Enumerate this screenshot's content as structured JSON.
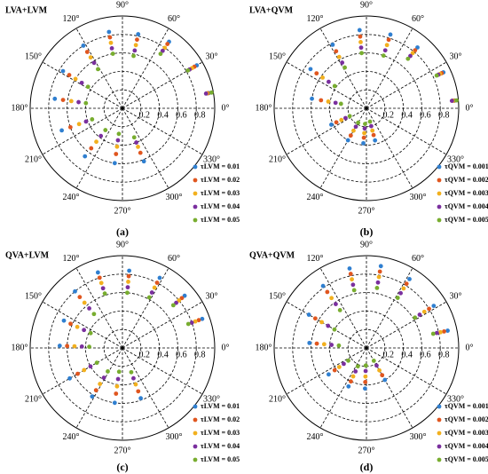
{
  "chart_data": [
    {
      "type": "scatter",
      "polar": true,
      "title": "LVA+LVM",
      "label": "(a)",
      "rlim": [
        0,
        1
      ],
      "rticks": [
        0.2,
        0.4,
        0.6,
        0.8
      ],
      "thetaticks": [
        {
          "value": 0,
          "label": "0°"
        },
        {
          "value": 30,
          "label": "30°"
        },
        {
          "value": 60,
          "label": "60°"
        },
        {
          "value": 90,
          "label": "90°"
        },
        {
          "value": 120,
          "label": "120°"
        },
        {
          "value": 150,
          "label": "150°"
        },
        {
          "value": 180,
          "label": "180°"
        },
        {
          "value": 210,
          "label": "210°"
        },
        {
          "value": 240,
          "label": "240°"
        },
        {
          "value": 270,
          "label": "270°"
        },
        {
          "value": 300,
          "label": "300°"
        },
        {
          "value": 330,
          "label": "330°"
        }
      ],
      "series": [
        {
          "name": "τLVM = 0.01",
          "color": "#2f7fd0",
          "theta": [
            10,
            30,
            55,
            78,
            100,
            122,
            148,
            172,
            200,
            232,
            262,
            292
          ],
          "r": [
            0.95,
            0.93,
            0.88,
            0.82,
            0.84,
            0.8,
            0.76,
            0.74,
            0.7,
            0.66,
            0.6,
            0.62
          ]
        },
        {
          "name": "τLVM = 0.02",
          "color": "#e0561f",
          "theta": [
            10,
            30,
            55,
            78,
            100,
            122,
            148,
            172,
            200,
            232,
            262,
            292
          ],
          "r": [
            0.94,
            0.9,
            0.85,
            0.76,
            0.78,
            0.72,
            0.68,
            0.65,
            0.6,
            0.55,
            0.5,
            0.52
          ]
        },
        {
          "name": "τLVM = 0.03",
          "color": "#f2b01e",
          "theta": [
            10,
            30,
            55,
            78,
            100,
            122,
            148,
            172,
            200,
            232,
            262,
            292
          ],
          "r": [
            0.93,
            0.87,
            0.8,
            0.7,
            0.72,
            0.65,
            0.6,
            0.56,
            0.5,
            0.46,
            0.42,
            0.45
          ]
        },
        {
          "name": "τLVM = 0.04",
          "color": "#7a2f9e",
          "theta": [
            10,
            30,
            55,
            78,
            100,
            122,
            148,
            172,
            200,
            232,
            262,
            292
          ],
          "r": [
            0.92,
            0.84,
            0.76,
            0.64,
            0.66,
            0.58,
            0.52,
            0.48,
            0.42,
            0.38,
            0.35,
            0.4
          ]
        },
        {
          "name": "τLVM = 0.05",
          "color": "#78ad2f",
          "theta": [
            10,
            30,
            55,
            78,
            100,
            122,
            148,
            172,
            200,
            232,
            262,
            292
          ],
          "r": [
            0.98,
            0.82,
            0.72,
            0.58,
            0.6,
            0.5,
            0.44,
            0.4,
            0.35,
            0.3,
            0.28,
            0.34
          ]
        }
      ]
    },
    {
      "type": "scatter",
      "polar": true,
      "title": "LVA+QVM",
      "label": "(b)",
      "rlim": [
        0,
        1
      ],
      "rticks": [
        0.2,
        0.4,
        0.6,
        0.8
      ],
      "thetaticks": [
        {
          "value": 0,
          "label": "0°"
        },
        {
          "value": 30,
          "label": "30°"
        },
        {
          "value": 60,
          "label": "60°"
        },
        {
          "value": 90,
          "label": "90°"
        },
        {
          "value": 120,
          "label": "120°"
        },
        {
          "value": 150,
          "label": "150°"
        },
        {
          "value": 180,
          "label": "180°"
        },
        {
          "value": 210,
          "label": "210°"
        },
        {
          "value": 240,
          "label": "240°"
        },
        {
          "value": 270,
          "label": "270°"
        },
        {
          "value": 300,
          "label": "300°"
        },
        {
          "value": 330,
          "label": "330°"
        }
      ],
      "series": [
        {
          "name": "τQVM = 0.001",
          "color": "#2f7fd0",
          "theta": [
            5,
            25,
            50,
            72,
            95,
            118,
            145,
            170,
            205,
            240,
            265,
            285
          ],
          "r": [
            0.96,
            0.92,
            0.86,
            0.84,
            0.85,
            0.78,
            0.74,
            0.6,
            0.42,
            0.4,
            0.38,
            0.36
          ]
        },
        {
          "name": "τQVM = 0.002",
          "color": "#e0561f",
          "theta": [
            5,
            25,
            50,
            72,
            95,
            118,
            145,
            170,
            205,
            240,
            265,
            285
          ],
          "r": [
            0.95,
            0.9,
            0.82,
            0.78,
            0.78,
            0.7,
            0.66,
            0.5,
            0.36,
            0.34,
            0.32,
            0.3
          ]
        },
        {
          "name": "τQVM = 0.003",
          "color": "#f2b01e",
          "theta": [
            5,
            25,
            50,
            72,
            95,
            118,
            145,
            170,
            205,
            240,
            265,
            285
          ],
          "r": [
            0.94,
            0.88,
            0.78,
            0.72,
            0.72,
            0.63,
            0.58,
            0.42,
            0.3,
            0.28,
            0.27,
            0.25
          ]
        },
        {
          "name": "τQVM = 0.004",
          "color": "#7a2f9e",
          "theta": [
            5,
            25,
            50,
            72,
            95,
            118,
            145,
            170,
            205,
            240,
            265,
            285
          ],
          "r": [
            0.93,
            0.86,
            0.74,
            0.66,
            0.66,
            0.56,
            0.5,
            0.34,
            0.25,
            0.23,
            0.22,
            0.2
          ]
        },
        {
          "name": "τQVM = 0.005",
          "color": "#78ad2f",
          "theta": [
            5,
            25,
            50,
            72,
            95,
            118,
            145,
            170,
            205,
            240,
            265,
            285
          ],
          "r": [
            0.98,
            0.84,
            0.7,
            0.6,
            0.6,
            0.5,
            0.42,
            0.28,
            0.2,
            0.18,
            0.17,
            0.15
          ]
        }
      ]
    },
    {
      "type": "scatter",
      "polar": true,
      "title": "QVA+LVM",
      "label": "(c)",
      "rlim": [
        0,
        1
      ],
      "rticks": [
        0.2,
        0.4,
        0.6,
        0.8
      ],
      "thetaticks": [
        {
          "value": 0,
          "label": "0°"
        },
        {
          "value": 30,
          "label": "30°"
        },
        {
          "value": 60,
          "label": "60°"
        },
        {
          "value": 90,
          "label": "90°"
        },
        {
          "value": 120,
          "label": "120°"
        },
        {
          "value": 150,
          "label": "150°"
        },
        {
          "value": 180,
          "label": "180°"
        },
        {
          "value": 210,
          "label": "210°"
        },
        {
          "value": 240,
          "label": "240°"
        },
        {
          "value": 270,
          "label": "270°"
        },
        {
          "value": 300,
          "label": "300°"
        },
        {
          "value": 330,
          "label": "330°"
        }
      ],
      "series": [
        {
          "name": "τLVM = 0.01",
          "color": "#2f7fd0",
          "theta": [
            20,
            40,
            62,
            85,
            108,
            130,
            155,
            178,
            210,
            238,
            262,
            290
          ],
          "r": [
            0.92,
            0.88,
            0.86,
            0.84,
            0.86,
            0.8,
            0.7,
            0.68,
            0.66,
            0.62,
            0.6,
            0.58
          ]
        },
        {
          "name": "τLVM = 0.02",
          "color": "#e0561f",
          "theta": [
            20,
            40,
            62,
            85,
            108,
            130,
            155,
            178,
            210,
            238,
            262,
            290
          ],
          "r": [
            0.88,
            0.84,
            0.8,
            0.78,
            0.8,
            0.72,
            0.62,
            0.6,
            0.56,
            0.54,
            0.5,
            0.5
          ]
        },
        {
          "name": "τLVM = 0.03",
          "color": "#f2b01e",
          "theta": [
            20,
            40,
            62,
            85,
            108,
            130,
            155,
            178,
            210,
            238,
            262,
            290
          ],
          "r": [
            0.84,
            0.8,
            0.74,
            0.72,
            0.74,
            0.64,
            0.54,
            0.52,
            0.48,
            0.46,
            0.42,
            0.42
          ]
        },
        {
          "name": "τLVM = 0.04",
          "color": "#7a2f9e",
          "theta": [
            20,
            40,
            62,
            85,
            108,
            130,
            155,
            178,
            210,
            238,
            262,
            290
          ],
          "r": [
            0.8,
            0.76,
            0.68,
            0.66,
            0.68,
            0.56,
            0.46,
            0.44,
            0.4,
            0.38,
            0.34,
            0.35
          ]
        },
        {
          "name": "τLVM = 0.05",
          "color": "#78ad2f",
          "theta": [
            20,
            40,
            62,
            85,
            108,
            130,
            155,
            178,
            210,
            238,
            262,
            290
          ],
          "r": [
            0.76,
            0.72,
            0.62,
            0.6,
            0.62,
            0.48,
            0.38,
            0.36,
            0.32,
            0.3,
            0.26,
            0.28
          ]
        }
      ]
    },
    {
      "type": "scatter",
      "polar": true,
      "title": "QVA+QVM",
      "label": "(d)",
      "rlim": [
        0,
        1
      ],
      "rticks": [
        0.2,
        0.4,
        0.6,
        0.8
      ],
      "thetaticks": [
        {
          "value": 0,
          "label": "0°"
        },
        {
          "value": 30,
          "label": "30°"
        },
        {
          "value": 60,
          "label": "60°"
        },
        {
          "value": 90,
          "label": "90°"
        },
        {
          "value": 120,
          "label": "120°"
        },
        {
          "value": 150,
          "label": "150°"
        },
        {
          "value": 180,
          "label": "180°"
        },
        {
          "value": 210,
          "label": "210°"
        },
        {
          "value": 240,
          "label": "240°"
        },
        {
          "value": 270,
          "label": "270°"
        },
        {
          "value": 300,
          "label": "300°"
        },
        {
          "value": 330,
          "label": "330°"
        }
      ],
      "series": [
        {
          "name": "τQVM = 0.001",
          "color": "#2f7fd0",
          "theta": [
            12,
            32,
            58,
            80,
            102,
            125,
            150,
            175,
            215,
            245,
            268,
            300
          ],
          "r": [
            0.9,
            0.86,
            0.88,
            0.9,
            0.88,
            0.82,
            0.72,
            0.62,
            0.5,
            0.46,
            0.44,
            0.4
          ]
        },
        {
          "name": "τQVM = 0.002",
          "color": "#e0561f",
          "theta": [
            12,
            32,
            58,
            80,
            102,
            125,
            150,
            175,
            215,
            245,
            268,
            300
          ],
          "r": [
            0.86,
            0.8,
            0.82,
            0.84,
            0.82,
            0.74,
            0.64,
            0.54,
            0.42,
            0.4,
            0.37,
            0.34
          ]
        },
        {
          "name": "τQVM = 0.003",
          "color": "#f2b01e",
          "theta": [
            12,
            32,
            58,
            80,
            102,
            125,
            150,
            175,
            215,
            245,
            268,
            300
          ],
          "r": [
            0.82,
            0.74,
            0.76,
            0.78,
            0.76,
            0.66,
            0.56,
            0.46,
            0.36,
            0.34,
            0.31,
            0.28
          ]
        },
        {
          "name": "τQVM = 0.004",
          "color": "#7a2f9e",
          "theta": [
            12,
            32,
            58,
            80,
            102,
            125,
            150,
            175,
            215,
            245,
            268,
            300
          ],
          "r": [
            0.78,
            0.68,
            0.7,
            0.72,
            0.7,
            0.58,
            0.48,
            0.38,
            0.3,
            0.28,
            0.25,
            0.22
          ]
        },
        {
          "name": "τQVM = 0.005",
          "color": "#78ad2f",
          "theta": [
            12,
            32,
            58,
            80,
            102,
            125,
            150,
            175,
            215,
            245,
            268,
            300
          ],
          "r": [
            0.74,
            0.62,
            0.64,
            0.66,
            0.64,
            0.5,
            0.4,
            0.3,
            0.24,
            0.22,
            0.19,
            0.16
          ]
        }
      ]
    }
  ]
}
